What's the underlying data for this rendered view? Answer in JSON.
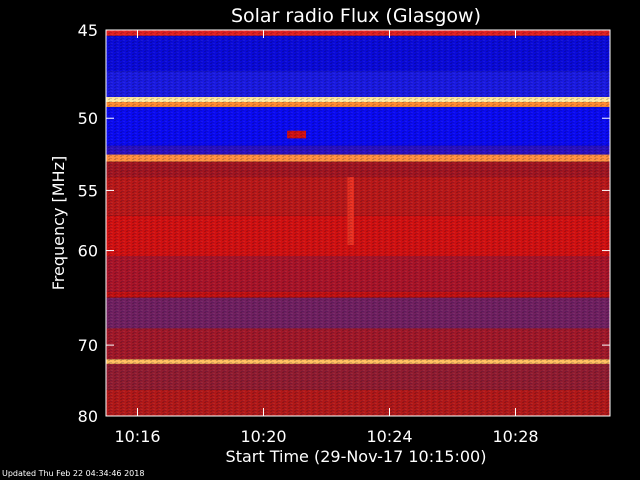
{
  "chart_data": {
    "type": "heatmap",
    "title": "Solar radio Flux (Glasgow)",
    "xlabel": "Start Time (29-Nov-17 10:15:00)",
    "ylabel": "Frequency [MHz]",
    "xlim_minutes": [
      "10:15:00",
      "10:31:00"
    ],
    "ylim": [
      45,
      80
    ],
    "x_ticks": [
      "10:16",
      "10:20",
      "10:24",
      "10:28"
    ],
    "x_tick_times": [
      "10:16",
      "10:20",
      "10:24",
      "10:28"
    ],
    "y_ticks": [
      45,
      50,
      55,
      60,
      70,
      80
    ],
    "y_scale": "reciprocal",
    "colormap": "blue-red-yellow-white",
    "bands": [
      {
        "from": 45.0,
        "to": 45.3,
        "color": "#e02020"
      },
      {
        "from": 45.3,
        "to": 47.2,
        "color": "#0a0ad8"
      },
      {
        "from": 47.2,
        "to": 48.7,
        "color": "#1a1ae0"
      },
      {
        "from": 48.7,
        "to": 49.0,
        "color": "#ffe9a0"
      },
      {
        "from": 49.0,
        "to": 49.3,
        "color": "#ff8a30"
      },
      {
        "from": 49.3,
        "to": 51.8,
        "color": "#0a0af0"
      },
      {
        "from": 51.8,
        "to": 52.4,
        "color": "#2a10c0"
      },
      {
        "from": 52.4,
        "to": 52.9,
        "color": "#ff9040"
      },
      {
        "from": 52.9,
        "to": 54.0,
        "color": "#a01520"
      },
      {
        "from": 54.0,
        "to": 57.0,
        "color": "#b81818"
      },
      {
        "from": 57.0,
        "to": 60.5,
        "color": "#d01010"
      },
      {
        "from": 60.5,
        "to": 64.0,
        "color": "#a81428"
      },
      {
        "from": 64.0,
        "to": 64.6,
        "color": "#c01010"
      },
      {
        "from": 64.6,
        "to": 68.0,
        "color": "#702060"
      },
      {
        "from": 68.0,
        "to": 71.8,
        "color": "#a01828"
      },
      {
        "from": 71.8,
        "to": 72.4,
        "color": "#ffc060"
      },
      {
        "from": 72.4,
        "to": 76.0,
        "color": "#901c30"
      },
      {
        "from": 76.0,
        "to": 80.0,
        "color": "#b01818"
      }
    ],
    "features": [
      {
        "time": "10:20:45",
        "freq_from": 50.8,
        "freq_to": 51.3,
        "duration_min": 0.6,
        "color": "#d01010"
      },
      {
        "time": "10:22:40",
        "freq_from": 54.0,
        "freq_to": 59.5,
        "duration_min": 0.2,
        "color": "#e83020"
      }
    ],
    "grid": false,
    "legend": "none"
  },
  "footer": {
    "updated": "Updated Thu Feb 22 04:34:46 2018"
  }
}
